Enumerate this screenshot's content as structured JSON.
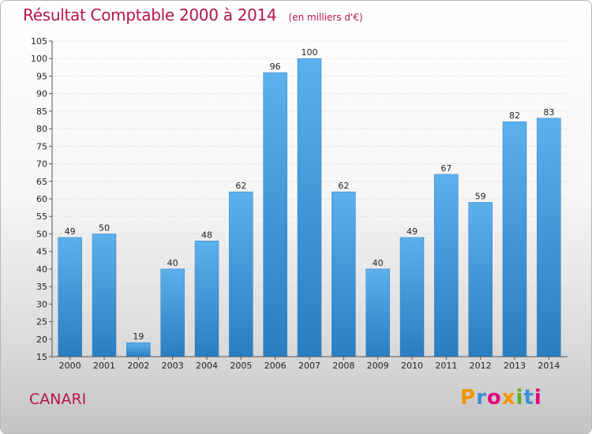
{
  "header": {
    "title": "Résultat Comptable 2000 à 2014",
    "subtitle": "(en milliers d'€)"
  },
  "footer": {
    "city": "CANARI",
    "logo": {
      "text": "Proxiti",
      "letter_colors": [
        "#f29400",
        "#3c8fd6",
        "#e5007e",
        "#f29400",
        "#5aad2b",
        "#3c8fd6",
        "#e5007e"
      ]
    }
  },
  "chart_data": {
    "type": "bar",
    "categories": [
      "2000",
      "2001",
      "2002",
      "2003",
      "2004",
      "2005",
      "2006",
      "2007",
      "2008",
      "2009",
      "2010",
      "2011",
      "2012",
      "2013",
      "2014"
    ],
    "values": [
      49,
      50,
      19,
      40,
      48,
      62,
      96,
      100,
      62,
      40,
      49,
      67,
      59,
      82,
      83
    ],
    "title": "Résultat Comptable 2000 à 2014",
    "subtitle": "(en milliers d'€)",
    "ylim": [
      15,
      105
    ],
    "yticks": [
      15,
      20,
      25,
      30,
      35,
      40,
      45,
      50,
      55,
      60,
      65,
      70,
      75,
      80,
      85,
      90,
      95,
      100,
      105
    ],
    "grid": true,
    "bar_color": "#4a9ee0",
    "legend": "none"
  }
}
